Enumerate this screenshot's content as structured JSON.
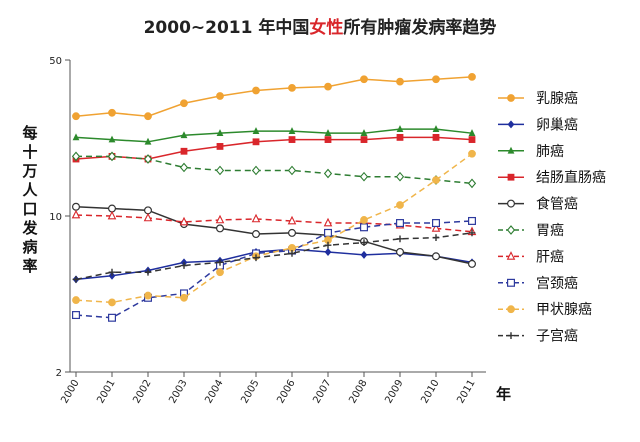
{
  "title": {
    "prefix": "2000~2011 年中国",
    "highlight": "女性",
    "suffix": "所有肿瘤发病率趋势"
  },
  "colors": {
    "highlight": "#d9262b",
    "axis": "#555555"
  },
  "chart_data": {
    "type": "line",
    "x": [
      "2000",
      "2001",
      "2002",
      "2003",
      "2004",
      "2005",
      "2006",
      "2007",
      "2008",
      "2009",
      "2010",
      "2011"
    ],
    "xlabel": "年",
    "ylabel": "每十万人口发病率",
    "yscale": "log",
    "ylim": [
      2,
      50
    ],
    "yticks": [
      2,
      10,
      50
    ],
    "legend_position": "right",
    "series": [
      {
        "name": "乳腺癌",
        "color": "#f0a232",
        "style": "solid",
        "marker": "circle-filled",
        "values": [
          28,
          29,
          28,
          32,
          34.5,
          36.5,
          37.5,
          38,
          41,
          40,
          41,
          42
        ]
      },
      {
        "name": "卵巢癌",
        "color": "#1f2f9e",
        "style": "solid",
        "marker": "diamond-filled",
        "values": [
          5.2,
          5.4,
          5.7,
          6.2,
          6.3,
          6.9,
          7.1,
          6.9,
          6.7,
          6.8,
          6.6,
          6.2
        ]
      },
      {
        "name": "肺癌",
        "color": "#2c8a2c",
        "style": "solid",
        "marker": "triangle-filled",
        "values": [
          22.5,
          22,
          21.5,
          23,
          23.5,
          24,
          24,
          23.5,
          23.5,
          24.5,
          24.5,
          23.5
        ]
      },
      {
        "name": "结肠直肠癌",
        "color": "#d9262b",
        "style": "solid",
        "marker": "square-filled",
        "values": [
          18,
          18.5,
          18,
          19.5,
          20.5,
          21.5,
          22,
          22,
          22,
          22.5,
          22.5,
          22
        ]
      },
      {
        "name": "食管癌",
        "color": "#333333",
        "style": "solid",
        "marker": "circle-open",
        "values": [
          11,
          10.8,
          10.6,
          9.2,
          8.8,
          8.3,
          8.4,
          8.2,
          7.7,
          6.9,
          6.6,
          6.1
        ]
      },
      {
        "name": "胃癌",
        "color": "#2e7d32",
        "style": "dashed",
        "marker": "diamond-open",
        "values": [
          18.5,
          18.5,
          18,
          16.5,
          16,
          16,
          16,
          15.5,
          15,
          15,
          14.5,
          14
        ]
      },
      {
        "name": "肝癌",
        "color": "#d9262b",
        "style": "dashed",
        "marker": "triangle-open",
        "values": [
          10.1,
          10,
          9.8,
          9.4,
          9.6,
          9.7,
          9.5,
          9.3,
          9.3,
          9.1,
          8.8,
          8.5
        ]
      },
      {
        "name": "宫颈癌",
        "color": "#2e3a9e",
        "style": "dashed",
        "marker": "square-open",
        "values": [
          3.6,
          3.5,
          4.3,
          4.5,
          6,
          6.8,
          7,
          8.4,
          8.9,
          9.3,
          9.3,
          9.5
        ]
      },
      {
        "name": "甲状腺癌",
        "color": "#f0b54a",
        "style": "dashed",
        "marker": "circle-filled",
        "values": [
          4.2,
          4.1,
          4.4,
          4.3,
          5.6,
          6.6,
          7.2,
          7.8,
          9.6,
          11.2,
          14.5,
          19
        ]
      },
      {
        "name": "子宫癌",
        "color": "#333333",
        "style": "dashed",
        "marker": "plus",
        "values": [
          5.2,
          5.6,
          5.6,
          6,
          6.2,
          6.5,
          6.8,
          7.4,
          7.6,
          7.9,
          8,
          8.4
        ]
      }
    ]
  }
}
